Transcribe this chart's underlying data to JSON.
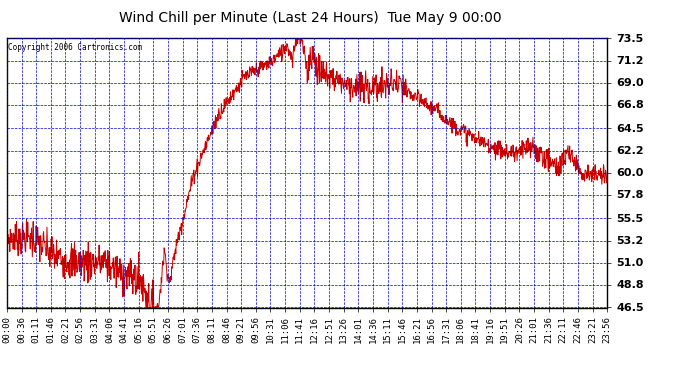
{
  "title": "Wind Chill per Minute (Last 24 Hours)  Tue May 9 00:00",
  "copyright": "Copyright 2006 Cartronics.com",
  "ylim": [
    46.5,
    73.5
  ],
  "yticks": [
    46.5,
    48.8,
    51.0,
    53.2,
    55.5,
    57.8,
    60.0,
    62.2,
    64.5,
    66.8,
    69.0,
    71.2,
    73.5
  ],
  "line_color": "#cc0000",
  "bg_color": "#ffffff",
  "plot_bg_color": "#ffffff",
  "grid_color": "#0000cc",
  "title_color": "#000000",
  "border_color": "#000000",
  "xtick_labels": [
    "00:00",
    "00:36",
    "01:11",
    "01:46",
    "02:21",
    "02:56",
    "03:31",
    "04:06",
    "04:41",
    "05:16",
    "05:51",
    "06:26",
    "07:01",
    "07:36",
    "08:11",
    "08:46",
    "09:21",
    "09:56",
    "10:31",
    "11:06",
    "11:41",
    "12:16",
    "12:51",
    "13:26",
    "14:01",
    "14:36",
    "15:11",
    "15:46",
    "16:21",
    "16:56",
    "17:31",
    "18:06",
    "18:41",
    "19:16",
    "19:51",
    "20:26",
    "21:01",
    "21:36",
    "22:11",
    "22:46",
    "23:21",
    "23:56"
  ]
}
